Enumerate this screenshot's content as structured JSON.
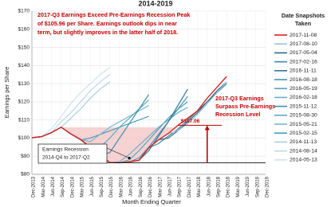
{
  "chart_data": {
    "type": "line",
    "title": "2014-2019",
    "x_label": "Month Ending Quarter",
    "y_label": "Earnings per Share",
    "categories": [
      "Dec-2013",
      "Mar-2014",
      "Jun-2014",
      "Sep-2014",
      "Dec-2014",
      "Mar-2015",
      "Jun-2015",
      "Sep-2015",
      "Dec-2015",
      "Mar-2016",
      "Jun-2016",
      "Sep-2016",
      "Dec-2016",
      "Mar-2017",
      "Jun-2017",
      "Sep-2017",
      "Dec-2017",
      "Mar-2018",
      "Jun-2018",
      "Sep-2018",
      "Dec-2018",
      "Mar-2019",
      "Jun-2019",
      "Sep-2019",
      "Dec-2019"
    ],
    "ylim": [
      80,
      170
    ],
    "yticks": [
      {
        "value": 80,
        "label": "$80"
      },
      {
        "value": 90,
        "label": "$90"
      },
      {
        "value": 100,
        "label": "$100"
      },
      {
        "value": 110,
        "label": "$110"
      },
      {
        "value": 120,
        "label": "$120"
      },
      {
        "value": 130,
        "label": "$130"
      },
      {
        "value": 140,
        "label": "$140"
      },
      {
        "value": 150,
        "label": "$150"
      },
      {
        "value": 160,
        "label": "$160"
      },
      {
        "value": 170,
        "label": "$170"
      }
    ],
    "grid": true,
    "legend_title": [
      "Date Snapshots",
      "Taken"
    ],
    "series": [
      {
        "name": "2017-11-08",
        "color": "#d8231f",
        "values": [
          100.2,
          100.8,
          103,
          106,
          102.3,
          99.2,
          94.9,
          90.7,
          86.5,
          86.4,
          86.9,
          87.7,
          94.6,
          99,
          102.5,
          107.06,
          111,
          115,
          122,
          128,
          134,
          null,
          null,
          null,
          null
        ]
      },
      {
        "name": "2017-08-10",
        "color": "#9fc2d4",
        "values": [
          100.2,
          100.8,
          103,
          106,
          102.3,
          99.2,
          94.9,
          90.7,
          86.5,
          86.4,
          86.9,
          87.7,
          94.6,
          99,
          102.5,
          104,
          108,
          113,
          119,
          125,
          131,
          null,
          null,
          null,
          null
        ]
      },
      {
        "name": "2017-05-04",
        "color": "#2b6a88",
        "values": [
          100.2,
          100.8,
          103,
          106,
          102.3,
          99.2,
          94.9,
          90.7,
          86.5,
          86.4,
          86.9,
          87.7,
          94.6,
          99,
          100,
          104,
          109,
          114,
          120,
          126,
          131,
          null,
          null,
          null,
          null
        ]
      },
      {
        "name": "2017-02-16",
        "color": "#3a86a6",
        "values": [
          100.2,
          100.8,
          103,
          106,
          102.3,
          99.2,
          94.9,
          90.7,
          86.5,
          86.4,
          86.9,
          87.7,
          94.6,
          97,
          101,
          105,
          110,
          115,
          120,
          125,
          130,
          null,
          null,
          null,
          null
        ]
      },
      {
        "name": "2016-11-11",
        "color": "#2f7896",
        "values": [
          100.2,
          100.8,
          103,
          106,
          102.3,
          99.2,
          94.9,
          90.7,
          86.5,
          86.4,
          86.9,
          87.7,
          93,
          101,
          109,
          118,
          127,
          null,
          null,
          null,
          null,
          null,
          null,
          null,
          null
        ]
      },
      {
        "name": "2016-08-18",
        "color": "#4796b6",
        "values": [
          100.2,
          100.8,
          103,
          106,
          102.3,
          99.2,
          94.9,
          90.7,
          86.5,
          86.4,
          86.9,
          89,
          95,
          102,
          109,
          116,
          123,
          null,
          null,
          null,
          null,
          null,
          null,
          null,
          null
        ]
      },
      {
        "name": "2016-05-19",
        "color": "#57a2c2",
        "values": [
          100.2,
          100.8,
          103,
          106,
          102.3,
          99.2,
          94.9,
          90.7,
          86.5,
          86.4,
          88,
          93,
          99,
          105,
          111,
          116,
          120,
          null,
          null,
          null,
          null,
          null,
          null,
          null,
          null
        ]
      },
      {
        "name": "2016-02-18",
        "color": "#69aecb",
        "values": [
          100.2,
          100.8,
          103,
          106,
          102.3,
          99.2,
          94.9,
          90.7,
          86.5,
          87,
          91,
          96,
          101,
          106,
          110,
          114,
          117,
          null,
          null,
          null,
          null,
          null,
          null,
          null,
          null
        ]
      },
      {
        "name": "2015-11-12",
        "color": "#3e8eae",
        "values": [
          100.2,
          100.8,
          103,
          106,
          102.3,
          99.2,
          94.9,
          90.7,
          92,
          100,
          108,
          116,
          124,
          null,
          null,
          null,
          null,
          null,
          null,
          null,
          null,
          null,
          null,
          null,
          null
        ]
      },
      {
        "name": "2015-08-30",
        "color": "#5ea8c6",
        "values": [
          100.2,
          100.8,
          103,
          106,
          102.3,
          99.2,
          94.9,
          95,
          100,
          106,
          111,
          116,
          121,
          null,
          null,
          null,
          null,
          null,
          null,
          null,
          null,
          null,
          null,
          null,
          null
        ]
      },
      {
        "name": "2015-05-21",
        "color": "#78b7d2",
        "values": [
          100.2,
          100.8,
          103,
          106,
          102.3,
          99.2,
          98,
          102,
          106,
          109,
          112,
          115,
          118,
          null,
          null,
          null,
          null,
          null,
          null,
          null,
          null,
          null,
          null,
          null,
          null
        ]
      },
      {
        "name": "2015-02-15",
        "color": "#4a9bbd",
        "values": [
          100.2,
          100.8,
          103,
          106,
          102.3,
          99,
          100,
          102,
          104,
          106,
          108,
          110,
          112,
          null,
          null,
          null,
          null,
          null,
          null,
          null,
          null,
          null,
          null,
          null,
          null
        ]
      },
      {
        "name": "2014-11-13",
        "color": "#a6cfe3",
        "values": [
          100.2,
          100.8,
          103,
          106,
          111,
          116,
          122,
          127,
          131,
          null,
          null,
          null,
          null,
          null,
          null,
          null,
          null,
          null,
          null,
          null,
          null,
          null,
          null,
          null,
          null
        ]
      },
      {
        "name": "2014-08-14",
        "color": "#bad8ea",
        "values": [
          100.2,
          100.8,
          103,
          109,
          114,
          120,
          126,
          131,
          135,
          null,
          null,
          null,
          null,
          null,
          null,
          null,
          null,
          null,
          null,
          null,
          null,
          null,
          null,
          null,
          null
        ]
      },
      {
        "name": "2014-05-13",
        "color": "#cde3ef",
        "values": [
          100.2,
          100.8,
          105,
          112,
          119,
          125,
          130,
          135,
          139,
          null,
          null,
          null,
          null,
          null,
          null,
          null,
          null,
          null,
          null,
          null,
          null,
          null,
          null,
          null,
          null
        ]
      }
    ],
    "annotations": {
      "box_text": [
        "2017-Q3 Earnings Exceed Pre-Earnings Recession Peak",
        "of $105.96 per Share.  Earnings outlook dips in near",
        "term, but slightly improves in the latter half of 2018."
      ],
      "peak": 105.96,
      "surpass_level": {
        "value": 107.06,
        "label": "$107.06"
      },
      "surpass_text": [
        "2017-Q3 Earnings",
        "Surpass Pre-Earnings",
        "Recession Level"
      ],
      "recession_text": [
        "Earnings Recession",
        "2014-Q4 to 2017-Q2"
      ]
    }
  }
}
